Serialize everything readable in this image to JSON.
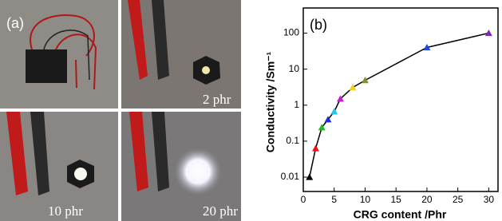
{
  "photo_panel": {
    "label": "(a)",
    "captions": [
      "2 phr",
      "10 phr",
      "20 phr"
    ]
  },
  "chart_data": {
    "type": "scatter",
    "label": "(b)",
    "xlabel": "CRG content /Phr",
    "ylabel": "Conductivity /Sm⁻¹",
    "x": [
      1,
      2,
      3,
      4,
      5,
      6,
      8,
      10,
      20,
      30
    ],
    "values": [
      0.01,
      0.063,
      0.24,
      0.4,
      0.66,
      1.5,
      3.1,
      4.9,
      40,
      100
    ],
    "point_colors": [
      "#000000",
      "#e8141c",
      "#28b428",
      "#1e2fd8",
      "#21c6e8",
      "#c81ec8",
      "#e8d21e",
      "#8c8c28",
      "#1e4ad8",
      "#7a2ab4"
    ],
    "line_color": "#000000",
    "xlim": [
      0,
      31.5
    ],
    "xticks": [
      0,
      5,
      10,
      15,
      20,
      25,
      30
    ],
    "ylim": [
      0.004,
      500
    ],
    "yticks": [
      0.01,
      0.1,
      1,
      10,
      100
    ],
    "log_y": true
  }
}
